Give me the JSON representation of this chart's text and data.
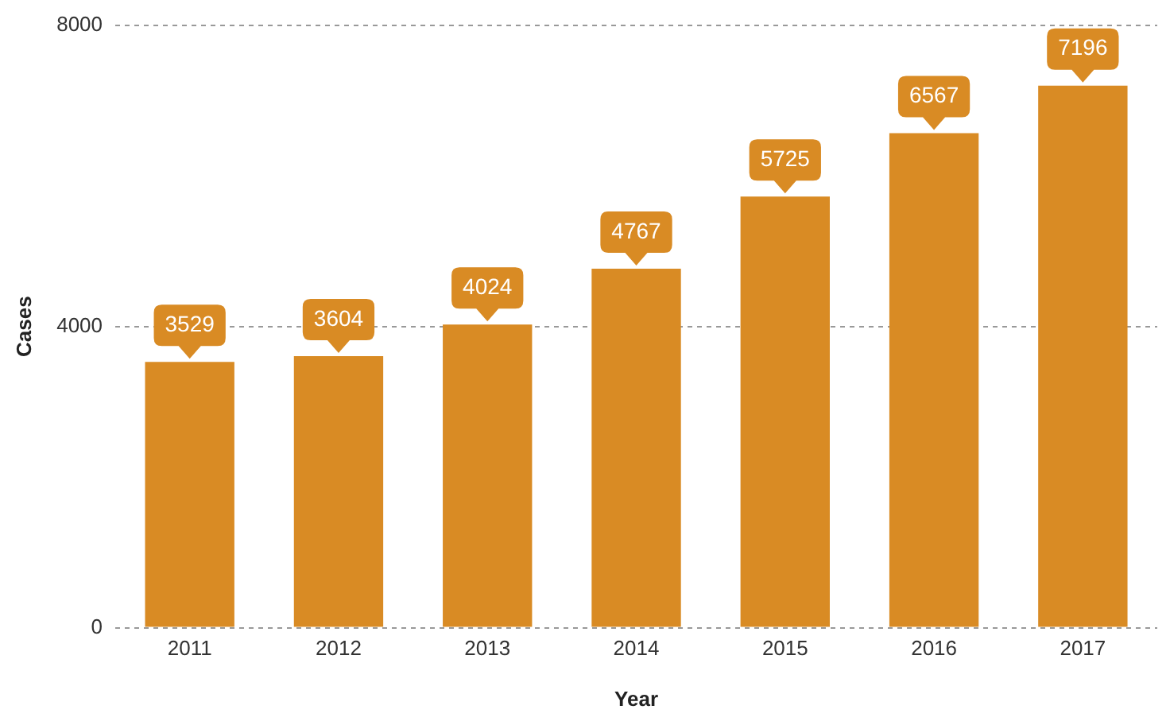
{
  "chart_data": {
    "type": "bar",
    "xlabel": "Year",
    "ylabel": "Cases",
    "categories": [
      "2011",
      "2012",
      "2013",
      "2014",
      "2015",
      "2016",
      "2017"
    ],
    "values": [
      3529,
      3604,
      4024,
      4767,
      5725,
      6567,
      7196
    ],
    "color": "#d98b24",
    "ylim": [
      0,
      8000
    ],
    "yticks": [
      0,
      4000,
      8000
    ],
    "grid": "y",
    "data_labels": true,
    "legend": false
  }
}
